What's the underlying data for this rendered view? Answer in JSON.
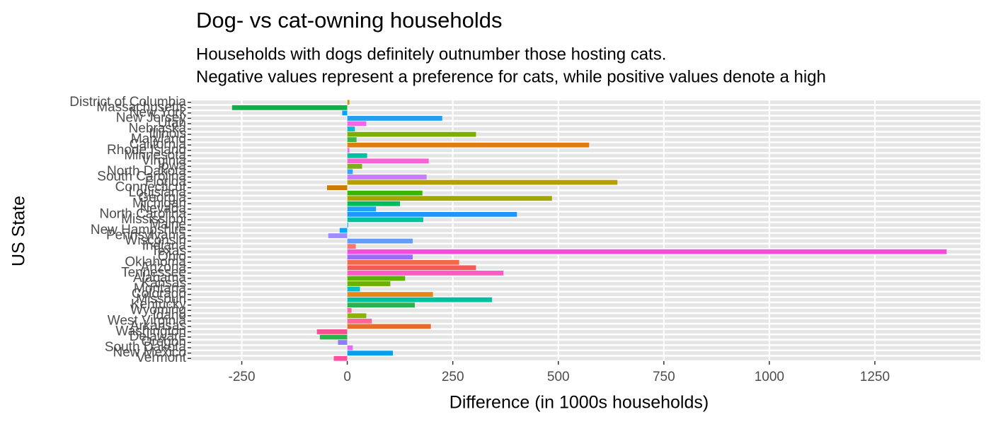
{
  "chart_data": {
    "type": "barh",
    "title": "Dog- vs cat-owning households",
    "subtitle": [
      "Households with dogs definitely outnumber those hosting cats.",
      "Negative values represent a preference for cats, while positive values denote a high"
    ],
    "xlabel": "Difference (in 1000s households)",
    "ylabel": "US State",
    "categories": [
      "District of Columbia",
      "Massachusetts",
      "New York",
      "New Jersey",
      "Utah",
      "Nebraska",
      "Illinois",
      "Maryland",
      "California",
      "Rhode Island",
      "Minnesota",
      "Virginia",
      "Iowa",
      "North Dakota",
      "South Carolina",
      "Florida",
      "Connecticut",
      "Louisiana",
      "Georgia",
      "Michigan",
      "Nevada",
      "North Carolina",
      "Mississippi",
      "Maine",
      "New Hampshire",
      "Pennsylvania",
      "Wisconsin",
      "Indiana",
      "Texas",
      "Ohio",
      "Oklahoma",
      "Arizona",
      "Tennessee",
      "Alabama",
      "Kansas",
      "Montana",
      "Colorado",
      "Missouri",
      "Kentucky",
      "Wyoming",
      "Idaho",
      "West Virginia",
      "Arkansas",
      "Washington",
      "Delaware",
      "Oregon",
      "South Dakota",
      "New Mexico",
      "Vermont"
    ],
    "values": [
      5,
      -273,
      -12,
      225,
      45,
      18,
      305,
      22,
      573,
      5,
      47,
      193,
      35,
      13,
      188,
      640,
      -48,
      178,
      485,
      125,
      68,
      402,
      180,
      2,
      -18,
      -45,
      155,
      20,
      1420,
      155,
      265,
      305,
      370,
      137,
      102,
      30,
      203,
      343,
      160,
      10,
      45,
      58,
      198,
      -72,
      -65,
      -22,
      13,
      108,
      -32
    ],
    "colors": [
      "#c49a00",
      "#0cb04a",
      "#00a5ff",
      "#1fa0f0",
      "#f564e3",
      "#00bfc4",
      "#7cae00",
      "#3cb54a",
      "#de7d12",
      "#e76bf3",
      "#00bfa0",
      "#fb61d7",
      "#7fad1d",
      "#35a2ff",
      "#c77cff",
      "#b79f00",
      "#cd7b00",
      "#39b600",
      "#a3a500",
      "#00bd5c",
      "#1da1f2",
      "#1f96ff",
      "#00c0a0",
      "#00b0f6",
      "#00a9ff",
      "#9f8cff",
      "#619cff",
      "#f8766d",
      "#f24ed8",
      "#9c6cf5",
      "#f06b4b",
      "#f25a5a",
      "#ff5ac8",
      "#5bb300",
      "#6bb100",
      "#00bfc4",
      "#e5861a",
      "#00bfa0",
      "#2db14b",
      "#ff66a8",
      "#8ab200",
      "#ff6699",
      "#e76b2b",
      "#f8508f",
      "#2eb34a",
      "#8c7cff",
      "#e56bf0",
      "#00a0f0",
      "#ff4fa0"
    ],
    "xlim": [
      -370,
      1500
    ],
    "xticks": [
      -250,
      0,
      250,
      500,
      750,
      1000,
      1250
    ],
    "grid": true
  }
}
